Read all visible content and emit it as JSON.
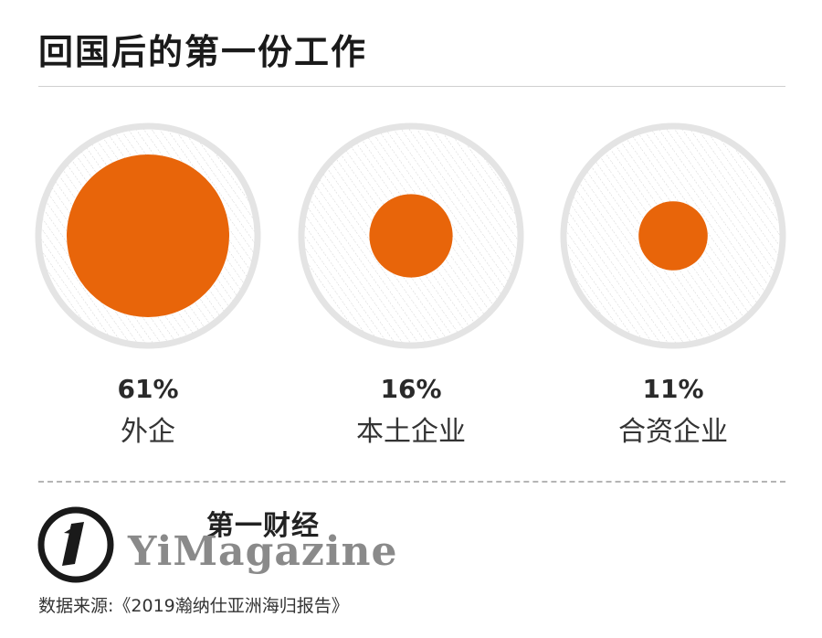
{
  "title": "回国后的第一份工作",
  "chart_data": {
    "type": "bubble",
    "title": "回国后的第一份工作",
    "categories": [
      "外企",
      "本土企业",
      "合资企业"
    ],
    "values": [
      61,
      16,
      11
    ],
    "value_labels": [
      "61%",
      "16%",
      "11%"
    ],
    "unit": "%",
    "max": 100
  },
  "colors": {
    "accent": "#e8650a",
    "ring": "#e4e4e4",
    "texture": "#d2d2d2",
    "title": "#1a1a1a",
    "label": "#333333"
  },
  "logo": {
    "chinese_name": "第一财经",
    "english_name": "YiMagazine"
  },
  "source": "数据来源:《2019瀚纳仕亚洲海归报告》"
}
